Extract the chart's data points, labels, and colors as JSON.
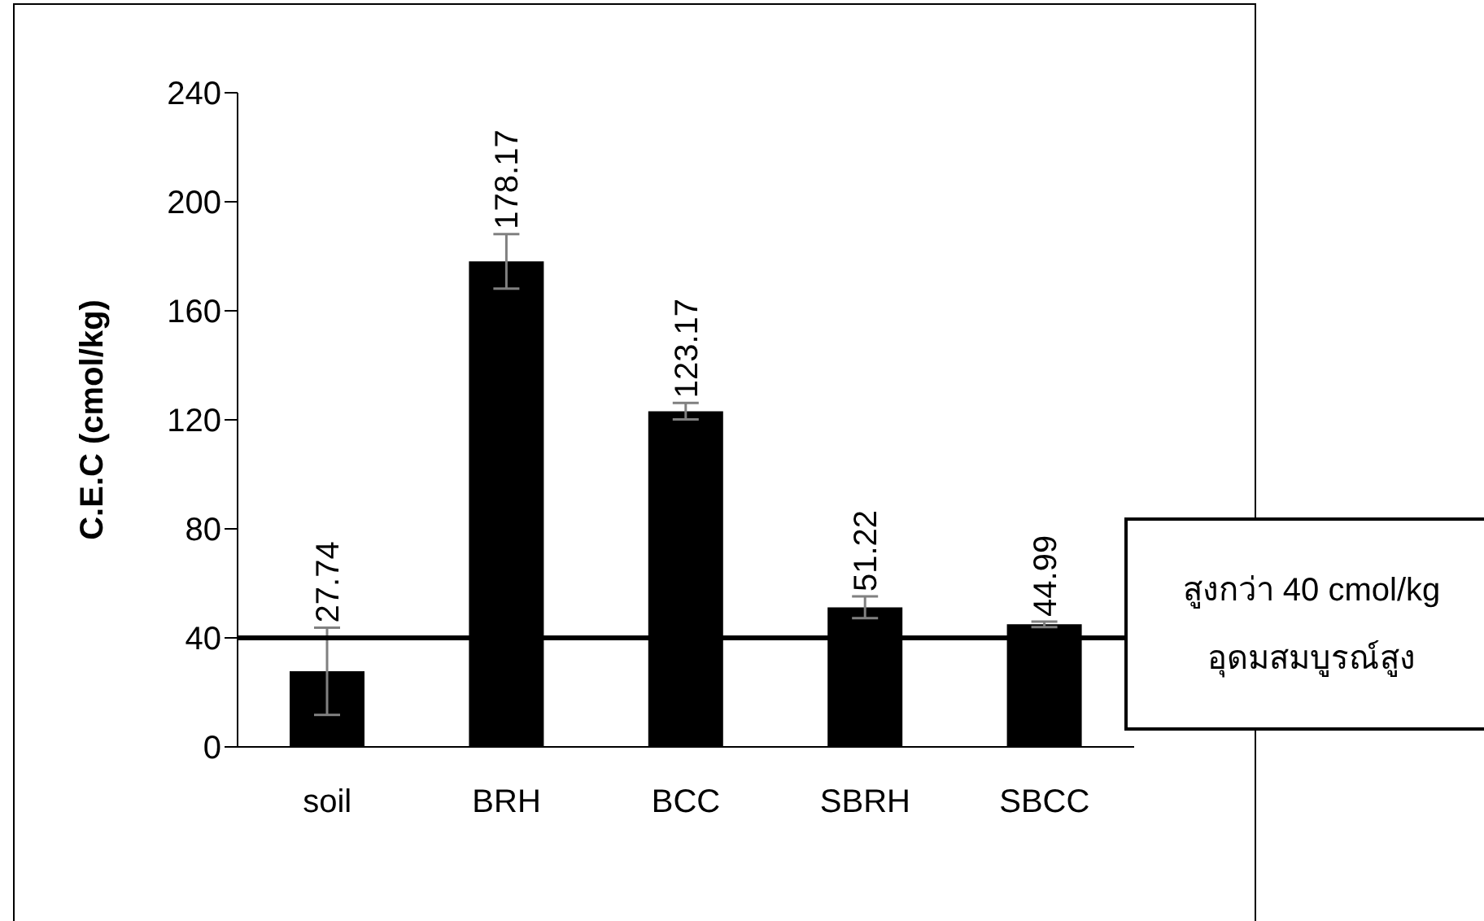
{
  "chart_data": {
    "type": "bar",
    "ylabel": "C.E.C (cmol/kg)",
    "categories": [
      "soil",
      "BRH",
      "BCC",
      "SBRH",
      "SBCC"
    ],
    "values": [
      27.74,
      178.17,
      123.17,
      51.22,
      44.99
    ],
    "errors": [
      16,
      10,
      3,
      4,
      1
    ],
    "color": "#000000",
    "ylim": [
      0,
      240
    ],
    "yticks": [
      0,
      40,
      80,
      120,
      160,
      200,
      240
    ],
    "grid": false,
    "data_labels": true,
    "ref_lines": [
      {
        "axis": "y",
        "value": 40,
        "label": "สูงกว่า 40 cmol/kg\nอุดมสมบูรณ์สูง",
        "color": "#000000"
      }
    ]
  }
}
